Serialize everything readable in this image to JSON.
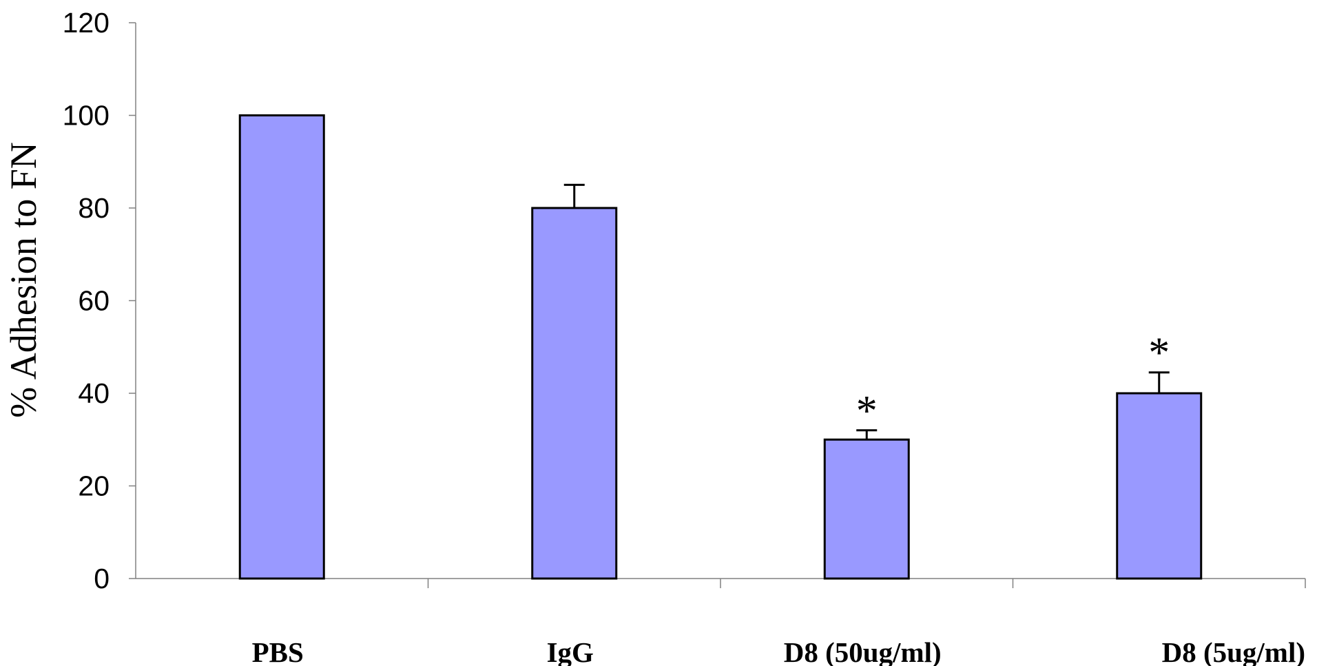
{
  "chart_data": {
    "type": "bar",
    "title": "",
    "xlabel": "",
    "ylabel": "% Adhesion to FN",
    "categories": [
      "PBS",
      "IgG",
      "D8 (50ug/ml)",
      "D8 (5ug/ml)"
    ],
    "values": [
      100,
      80,
      30,
      40
    ],
    "error": [
      0,
      5,
      2,
      4.5
    ],
    "annotations": [
      "",
      "",
      "*",
      "*"
    ],
    "ylim": [
      0,
      120
    ],
    "yticks": [
      0,
      20,
      40,
      60,
      80,
      100,
      120
    ],
    "grid": false,
    "legend": "none",
    "bar_color": "#9999ff",
    "edge_color": "#000000"
  }
}
